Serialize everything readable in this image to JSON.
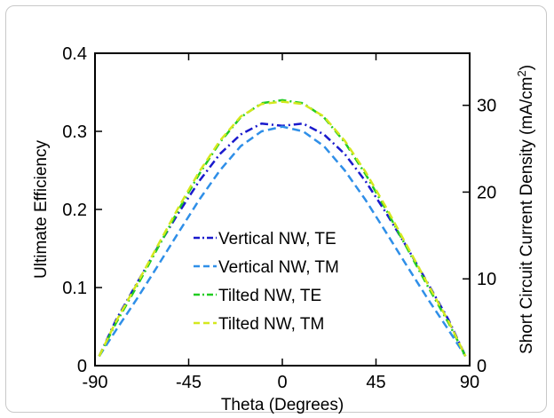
{
  "chart_data": {
    "type": "line",
    "xlabel": "Theta (Degrees)",
    "ylabel_left": "Ultimate Efficiency",
    "ylabel_right_prefix": "Short Circuit Current Density (mA/cm",
    "ylabel_right_sup": "2",
    "ylabel_right_suffix": ")",
    "xlim": [
      -90,
      90
    ],
    "ylim_left": [
      0,
      0.4
    ],
    "ylim_right": [
      0,
      36
    ],
    "x_ticks": [
      -90,
      -45,
      0,
      45,
      90
    ],
    "x_tick_labels": [
      "-90",
      "-45",
      "0",
      "45",
      "90"
    ],
    "y_left_ticks": [
      0,
      0.1,
      0.2,
      0.3,
      0.4
    ],
    "y_left_tick_labels": [
      "0",
      "0.1",
      "0.2",
      "0.3",
      "0.4"
    ],
    "y_right_ticks": [
      0,
      10,
      20,
      30
    ],
    "y_right_tick_labels": [
      "0",
      "10",
      "20",
      "30"
    ],
    "grid": false,
    "legend_position": "lower-center",
    "x": [
      -88,
      -80,
      -70,
      -60,
      -50,
      -40,
      -30,
      -20,
      -10,
      0,
      10,
      20,
      30,
      40,
      50,
      60,
      70,
      80,
      88
    ],
    "series": [
      {
        "name": "Vertical NW, TE",
        "color": "#1a1acc",
        "dash": "dashdot",
        "values": [
          0.012,
          0.058,
          0.105,
          0.151,
          0.195,
          0.236,
          0.271,
          0.296,
          0.31,
          0.307,
          0.31,
          0.296,
          0.271,
          0.236,
          0.195,
          0.151,
          0.105,
          0.058,
          0.012
        ]
      },
      {
        "name": "Vertical NW, TM",
        "color": "#2f8fe8",
        "dash": "dashed",
        "values": [
          0.012,
          0.045,
          0.085,
          0.127,
          0.17,
          0.212,
          0.25,
          0.281,
          0.3,
          0.306,
          0.3,
          0.281,
          0.25,
          0.212,
          0.17,
          0.127,
          0.085,
          0.045,
          0.012
        ]
      },
      {
        "name": "Tilted NW, TE",
        "color": "#22cc22",
        "dash": "dashdot",
        "values": [
          0.012,
          0.054,
          0.101,
          0.15,
          0.199,
          0.245,
          0.286,
          0.318,
          0.336,
          0.34,
          0.336,
          0.318,
          0.286,
          0.245,
          0.199,
          0.15,
          0.101,
          0.054,
          0.012
        ]
      },
      {
        "name": "Tilted NW, TM",
        "color": "#d4e81e",
        "dash": "dashed",
        "values": [
          0.012,
          0.056,
          0.104,
          0.153,
          0.202,
          0.248,
          0.288,
          0.319,
          0.335,
          0.338,
          0.335,
          0.319,
          0.288,
          0.248,
          0.202,
          0.153,
          0.104,
          0.056,
          0.012
        ]
      }
    ]
  }
}
